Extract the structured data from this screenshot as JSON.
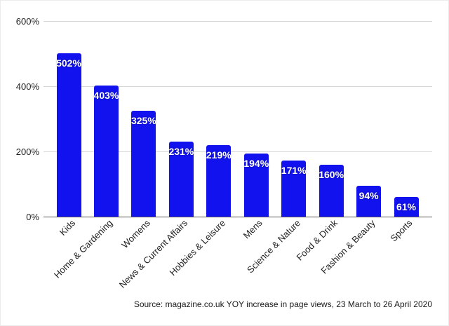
{
  "chart_data": {
    "type": "bar",
    "title": "",
    "xlabel": "",
    "ylabel": "",
    "categories": [
      "Kids",
      "Home & Gardening",
      "Womens",
      "News & Current Affairs",
      "Hobbies & Leisure",
      "Mens",
      "Science & Nature",
      "Food & Drink",
      "Fashion & Beauty",
      "Sports"
    ],
    "values": [
      502,
      403,
      325,
      231,
      219,
      194,
      171,
      160,
      94,
      61
    ],
    "value_labels": [
      "502%",
      "403%",
      "325%",
      "231%",
      "219%",
      "194%",
      "171%",
      "160%",
      "94%",
      "61%"
    ],
    "ylim": [
      0,
      600
    ],
    "yticks": [
      0,
      200,
      400,
      600
    ],
    "ytick_labels": [
      "0%",
      "200%",
      "400%",
      "600%"
    ],
    "grid": true,
    "legend_position": "none",
    "source_note": "Source: magazine.co.uk YOY increase in page views, 23 March to 26 April 2020"
  },
  "colors": {
    "bar": "#1212ee",
    "bar_label": "#ffffff",
    "gridline": "#d6d6d6",
    "axis_line": "#555555",
    "tick_text": "#1f1f1f",
    "background": "#ffffff"
  }
}
